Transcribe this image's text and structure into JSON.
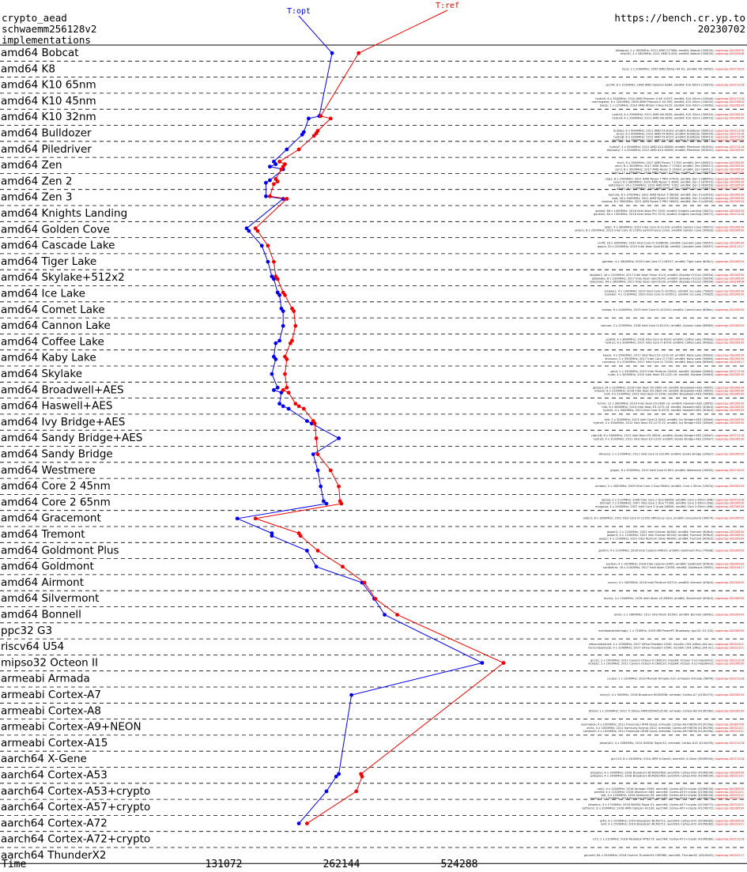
{
  "header": {
    "left_lines": [
      "crypto_aead",
      "schwaemm256128v2",
      "implementations"
    ],
    "right_lines": [
      "https://bench.cr.yp.to",
      "20230702"
    ]
  },
  "chart_data": {
    "type": "line",
    "x_scale": "log2",
    "xlabel": "Time",
    "x_ticks": [
      131072,
      262144,
      524288
    ],
    "series": [
      {
        "name": "T:opt",
        "color": "#0000ee",
        "label_pos": "top"
      },
      {
        "name": "T:ref",
        "color": "#ee0000",
        "label_pos": "top"
      }
    ],
    "rows": [
      {
        "label": "amd64 Bobcat",
        "opt": [
          248000
        ],
        "ref": [
          290000
        ],
        "machines": [
          "bfbobcat; 2 x 1600MHz; 2011 AMD G-T56N; amd64; Bobcat (500f20); supercop-20230530",
          "bfan30; 2 x 1600MHz; 2011 AMD E-450; amd64; Bobcat (500f20); supercop-20220506"
        ]
      },
      {
        "label": "amd64 K8",
        "opt": [],
        "ref": [],
        "machines": [
          "hero; 2 x 2000MHz; 2005 AMD Athlon 64 X2; amd64; K8 (40fb2); supercop-20171020"
        ]
      },
      {
        "label": "amd64 K10 65nm",
        "opt": [],
        "ref": [],
        "machines": [
          "gcc44; 8 x 2100MHz; 2008 AMD Opteron 8384; amd64; K10 65nm (100f23); supercop-20171218"
        ]
      },
      {
        "label": "amd64 K10 45nm",
        "opt": [],
        "ref": [],
        "machines": [
          "hydra5; 6 x 3300MHz; 2010 AMD Phenom II X6 1100T; amd64; K10 45nm (100fa0); supercop-20171218",
          "morningstar; 6 x 3200MHz; 2009 AMD Phenom II X4 955; amd64; K10 45nm (100f42); supercop-20170904",
          "blade; 1 x 1150MHz; 2010 AMD Athlon II Neo K125; amd64; K10 45nm (100f63); supercop-20230530"
        ]
      },
      {
        "label": "amd64 K10 32nm",
        "opt": [
          230000,
          216000
        ],
        "ref": [
          232000,
          246000
        ],
        "machines": [
          "hydra3; 4 x 2900MHz; 2011 AMD A6-3650; amd64; K10 32nm (300f10); supercop-20230530",
          "hydra4; 4 x 2900MHz; 2011 AMD A8-3850; amd64; K10 32nm (300f10); supercop-20230530"
        ]
      },
      {
        "label": "amd64 Bulldozer",
        "opt": [
          210000,
          208000
        ],
        "ref": [
          228000,
          226000,
          223000
        ],
        "machines": [
          "bulldoz; 8 x 4000MHz; 2011 AMD FX-8150; amd64; Bulldozer (600f12); supercop-20171218",
          "sirius; 8 x 4000MHz; 2012 AMD FX-8350; amd64; Bulldozer (600f20); supercop-20171218",
          "hydra8; 8 x 3300MHz; 2012 AMD FX-8120; amd64; Bulldozer (600f12); supercop-20171218",
          "seattle1; 4 x 3600MHz; 2012 AMD FX-4130; amd64; Bulldozer (600f12); supercop-20230530"
        ]
      },
      {
        "label": "amd64 Piledriver",
        "opt": [
          190000
        ],
        "ref": [
          204000
        ],
        "machines": [
          "hydra7; 2 x 3500MHz; 2012 AMD A10-5800K; amd64; Piledriver (610f01); supercop-20171218",
          "bfocasity; 2 x 2000MHz; 2012 AMD A10-5800K; amd64; Piledriver (610f01); supercop-20230530"
        ]
      },
      {
        "label": "amd64 Zen",
        "opt": [
          176000,
          178000,
          172000,
          186000
        ],
        "ref": [
          182000,
          188000,
          186000,
          184000
        ],
        "machines": [
          "zen1; 8 x 3500MHz; 2017 AMD Ryzen 7 1700; amd64; Zen (800f11); supercop-20230530",
          "zen2; 8 x 3500MHz; 2017 AMD Ryzen 7 1700X; amd64; Zen (800f11); supercop-20230530",
          "zen3; 8 x 3500MHz; 2017 AMD Ryzen 5 1500X; amd64; Zen (800f11); supercop-20230530",
          "ryzen; 12 x 3600MHz; 2018 AMD Ryzen 5 2600; amd64; Zen+ (800f82); supercop-20230530"
        ]
      },
      {
        "label": "amd64 Zen 2",
        "opt": [
          172000,
          168000
        ],
        "ref": [
          178000,
          180000,
          176000
        ],
        "machines": [
          "neg1; 8 x 2500MHz; 2021 AMD Ryzen 7 PRO 4750U; amd64; Zen 2 (860f01); supercop-20230530",
          "ryzen; 6 x 3600MHz; 2020 AMD Ryzen 5 3600; amd64; Zen 2 (870f10); supercop-20230530",
          "boltzmann; 16 x 2900MHz; 2019 AMD EPYC 7302; amd64; Zen 2 (830f10); supercop-20230530",
          "gankx; 8 x 2000MHz; 2020 AMD EPYC 7252; amd64; Zen 2 (830f10); supercop-20230530"
        ]
      },
      {
        "label": "amd64 Zen 3",
        "opt": [
          168000,
          186000
        ],
        "ref": [
          172000,
          190000
        ],
        "machines": [
          "bannira; 6 x 3700MHz; 2021 AMD Ryzen 5 5600X; amd64; Zen 3 (a20f10); supercop-20230530",
          "bad; 16 x 3400MHz; 2021 AMD Ryzen 9 5950X; amd64; Zen 3 (a20f10); supercop-20230530",
          "cosmos; 6 x 3900MHz; 2021 AMD Ryzen 5 PRO 5650G; amd64; Zen 3 (a50f00); supercop-20230530"
        ]
      },
      {
        "label": "amd64 Knights Landing",
        "opt": [],
        "ref": [],
        "machines": [
          "gankkl; 68 x 1400MHz; 2016 Intel Xeon Phi 7250; amd64; Knights Landing (50671); supercop-20230530",
          "gankkl2; 64 x 1300MHz; 2016 Intel Xeon Phi 7210; amd64; Knights Landing (50671); supercop-20171218"
        ]
      },
      {
        "label": "amd64 Golden Cove",
        "opt": [
          150000,
          152000
        ],
        "ref": [
          158000,
          160000
        ],
        "machines": [
          "alder; 4 x 3600MHz; 2022 Intel Core i3-12100; amd64; Golden Cove (90672); supercop-20230530",
          "alder2; 8 x 2500MHz; 2022 Intel Core i5-1235U performance cores; amd64; Golden Cove (906a3); supercop-20230530"
        ]
      },
      {
        "label": "amd64 Cascade Lake",
        "opt": [
          164000
        ],
        "ref": [
          170000
        ],
        "machines": [
          "cruffi; 18 x 3000MHz; 2020 Intel Core i9-10980XE; amd64; Cascade Lake (50657); supercop-20230530",
          "gsaca; 20 x 2500MHz; 2019 Intel Xeon Gold 6248; amd64; Cascade Lake (50657); supercop-20211217"
        ]
      },
      {
        "label": "amd64 Tiger Lake",
        "opt": [
          170000
        ],
        "ref": [
          176000
        ],
        "machines": [
          "gamber; 4 x 2800MHz; 2020 Intel Core i7-1165G7; amd64; Tiger Lake (806c1); supercop-20230530"
        ]
      },
      {
        "label": "amd64 Skylake+512x2",
        "opt": [
          174000,
          176000
        ],
        "ref": [
          178000,
          180000
        ],
        "machines": [
          "skylake1; 16 x 2100MHz; 2017 Intel Xeon Silver 4110; amd64; Skylake+512x2 (50654); supercop-20230530",
          "ptskylake; 8 x 2300MHz; 2017 Intel Xeon Gold 6140; amd64; Skylake+512x2 (50654); supercop-20230530",
          "sidechain; 64 x 2600MHz; 2017 Intel Xeon Gold 6130; amd64; Skylake+512x2 (50654); supercop-20210408"
        ]
      },
      {
        "label": "amd64 Ice Lake",
        "opt": [
          180000,
          182000
        ],
        "ref": [
          186000,
          188000
        ],
        "machines": [
          "icelake1; 4 x 1300MHz; 2019 Intel Core i5-1035G1; amd64; Ice Lake (706e5); supercop-20230530",
          "icelaker; 4 x 1100MHz; 2020 Intel Core i3-1005G1; amd64; Ice Lake (706e5); supercop-20230530"
        ]
      },
      {
        "label": "amd64 Comet Lake",
        "opt": [
          184000,
          186000
        ],
        "ref": [
          196000,
          198000
        ],
        "machines": [
          "icetwo; 6 x 2400MHz; 2019 Intel Core i5-10210U; amd64; Comet Lake (806ec); supercop-20230530"
        ]
      },
      {
        "label": "amd64 Cannon Lake",
        "opt": [
          186000
        ],
        "ref": [
          200000
        ],
        "machines": [
          "cannon; 2 x 2200MHz; 2018 Intel Core i3-8121U; amd64; Cannon Lake (60663); supercop-20230530"
        ]
      },
      {
        "label": "amd64 Coffee Lake",
        "opt": [
          182000,
          178000
        ],
        "ref": [
          196000,
          194000
        ],
        "machines": [
          "p1800; 4 x 3600MHz; 2018 Intel Core i3-8100; amd64; Coffee Lake (906eb); supercop-20230530",
          "hydra1; 6 x 3000MHz; 2017 Intel Core i7-8700; amd64; Coffee Lake (906ea); supercop-20230530"
        ]
      },
      {
        "label": "amd64 Kaby Lake",
        "opt": [
          176000,
          178000
        ],
        "ref": [
          188000,
          190000
        ],
        "machines": [
          "kaosa; 4 x 3500MHz; 2017 Intel Xeon E3-1220 v6; amd64; Kaby Lake (906e9); supercop-20230530",
          "shannon; 2 x 3500MHz; 2017 Intel Core i7-7700; amd64; Kaby Lake (906e9); supercop-20230530",
          "cumaeco; 4 x 2500MHz; 2017 Intel Core i3-7100U; amd64; Kaby Lake (806e9); supercop-20210417"
        ]
      },
      {
        "label": "amd64 Skylake",
        "opt": [
          174000
        ],
        "ref": [
          188000
        ],
        "machines": [
          "sand; 2 x 3300MHz; 2015 Intel Pentium G4400; amd64; Skylake (506e3); supercop-20171218",
          "nuke; 4 x 3500MHz; 2015 Intel Xeon E3-1220 v5; amd64; Skylake (506e3); supercop-20230530"
        ]
      },
      {
        "label": "amd64 Broadwell+AES",
        "opt": [
          180000,
          176000,
          184000
        ],
        "ref": [
          190000,
          186000,
          192000
        ],
        "machines": [
          "gbroad; 24 x 2200MHz; 2016 Intel Xeon E5-2650 v4; amd64; Broadwell+AES (406f1); supercop-20230530",
          "broad2; 8 x 2100MHz; 2016 Intel Xeon E5-2620 v4; amd64; Broadwell+AES (406f1); supercop-20230530",
          "bn4; 4 x 2100MHz; 2015 Intel Xeon D-1540; amd64; Broadwell+AES (50663); supercop-20230530"
        ]
      },
      {
        "label": "amd64 Haswell+AES",
        "opt": [
          182000,
          186000,
          192000
        ],
        "ref": [
          200000,
          204000,
          210000
        ],
        "machines": [
          "tumm; 12 x 2800MHz; 2014 Intel Xeon E5-2690 v3; amd64; Haswell+AES (306f2); supercop-20230530",
          "h4e; 8 x 3600MHz; 2014 Intel Xeon E3-1275 v3; amd64; Haswell+AES (306c3); supercop-20230530",
          "hydra2; 4 x 3400MHz; 2013 Intel Core i5-4570; amd64; Haswell+AES (306c3); supercop-20230530"
        ]
      },
      {
        "label": "amd64 Ivy Bridge+AES",
        "opt": [
          214000,
          220000
        ],
        "ref": [
          222000,
          224000
        ],
        "machines": [
          "ekk; 2 x 3000MHz; 2013 Intel Core i3-3240; amd64; Ivy Bridge+AES (306a9); supercop-20230530",
          "hydra9; 4 x 3500MHz; 2012 Intel Xeon E3-1275 V2; amd64; Ivy Bridge+AES (306a9); supercop-20230530"
        ]
      },
      {
        "label": "amd64 Sandy Bridge+AES",
        "opt": [
          258000
        ],
        "ref": [
          226000
        ],
        "machines": [
          "cdon28; 8 x 2600MHz; 2013 Intel Xeon E5-2650L; amd64; Sandy Bridge+AES (206d7); supercop-20171218",
          "hydra5; 4 x 3100MHz; 2011 Intel Xeon E3-1220; amd64; Sandy Bridge+AES (206a7); supercop-20230530"
        ]
      },
      {
        "label": "amd64 Sandy Bridge",
        "opt": [
          222000
        ],
        "ref": [
          228000
        ],
        "machines": [
          "bfnancy; 2 x 2100MHz; 2011 Intel Core i3-2310M; amd64; Sandy Bridge (206a7); supercop-20230530"
        ]
      },
      {
        "label": "amd64 Westmere",
        "opt": [
          228000
        ],
        "ref": [
          246000
        ],
        "machines": [
          "gilgen; 8 x 3200MHz; 2010 Intel Core i5-650; amd64; Westmere (20652); supercop-20171020"
        ]
      },
      {
        "label": "amd64 Core 2 45nm",
        "opt": [
          232000
        ],
        "ref": [
          258000
        ],
        "machines": [
          "wcldaix; 2 x 3000MHz; 2009 Intel Core 2 Duo E8400; amd64; Core 2 45nm (1067a); supercop-20230530"
        ]
      },
      {
        "label": "amd64 Core 2 65nm",
        "opt": [
          236000,
          240000
        ],
        "ref": [
          260000,
          262000
        ],
        "machines": [
          "latoso; 2 x 2137MHz; 2006 Intel Core 2 Duo E6400; amd64; Core 2 65nm (6f6); supercop-20171218",
          "bfsmall; 2 x 2000MHz; 2007 Intel Core 2 Duo T7300; amd64; Core 2 65nm (6fa); supercop-20230530",
          "morgana; 4 x 2400MHz; 2007 Intel Core 2 Quad Q6600; amd64; Core 2 65nm (6fb); supercop-20230530"
        ]
      },
      {
        "label": "amd64 Gracemont",
        "opt": [
          142000
        ],
        "ref": [
          158000
        ],
        "machines": [
          "alder2; 8 x 1800MHz; 2022 Intel Core i5-1235U efficiency core; amd64; Gracemont (90674); supercop-20230530"
        ]
      },
      {
        "label": "amd64 Tremont",
        "opt": [
          174000,
          174000
        ],
        "ref": [
          204000,
          206000
        ],
        "machines": [
          "jasper2; 2 x 1100MHz; 2021 Intel Celeron N4500; amd64; Tremont (906c0); supercop-20230530",
          "jasper3; 4 x 1100MHz; 2021 Intel Celeron N5100; amd64; Tremont (906c0); supercop-20230530",
          "jasper; 4 x 1100MHz; 2021 Intel Pentium Silver N6000; amd64; Tremont (906c0); supercop-20230530"
        ]
      },
      {
        "label": "amd64 Goldmont Plus",
        "opt": [
          214000
        ],
        "ref": [
          228000
        ],
        "machines": [
          "gemini; 4 x 1100MHz; 2018 Intel Celeron N4020; amd64; Goldmont Plus (706a8); supercop-20230530"
        ]
      },
      {
        "label": "amd64 Goldmont",
        "opt": [
          226000
        ],
        "ref": [
          264000
        ],
        "machines": [
          "exciton; 4 x 1500MHz; 2016 Intel Celeron J3455; amd64; Goldmont (506c9); supercop-20230530",
          "saciblehm; 16 x 2100MHz; 2017 Intel Atom C3955; amd64; Goldmont (506f1); supercop-20210417"
        ]
      },
      {
        "label": "amd64 Airmont",
        "opt": [
          296000
        ],
        "ref": [
          300000
        ],
        "machines": [
          "nuccm; 4 x 1600MHz; 2016 Intel Pentium N3710; amd64; Airmont (406c4); supercop-20230530"
        ]
      },
      {
        "label": "amd64 Silvermont",
        "opt": [
          318000
        ],
        "ref": [
          320000
        ],
        "machines": [
          "dunny; 4 x 1344MHz; 2016 Intel Atom x5-Z8300; amd64; Silvermont (406c4); supercop-20230530"
        ]
      },
      {
        "label": "amd64 Bonnell",
        "opt": [
          338000
        ],
        "ref": [
          364000
        ],
        "machines": [
          "atom; 2 x 1660MHz; 2011 Intel Atom D2500; amd64; Bonnell (30661); supercop-20230530"
        ]
      },
      {
        "label": "ppc32 G3",
        "opt": [],
        "ref": [],
        "machines": [
          "macbookwhitemagic; 1 x 720MHz; 2003 IBM PowerPC Broadway; ppc32; G3 (G3); supercop-20230530"
        ]
      },
      {
        "label": "riscv64 U54",
        "opt": [],
        "ref": [],
        "machines": [
          "hifiveunleashed; 4 x 1500MHz; 2017 SiFive Freedom U540; riscv64; U54 (sifive,u54-mc); supercop-20231221",
          "riscvunleashed2; 4 x 1000MHz; 2017 SiFive Freedom U540; riscv64; U54 (sifive,u54-mc); supercop-20231221"
        ]
      },
      {
        "label": "mipso32 Octeon II",
        "opt": [
          600000
        ],
        "ref": [
          680000
        ],
        "machines": [
          "gcc31; 2 x 1000MHz; 2011 Cavium Octeon II CN6120; mips64; Octeon II (cnmips64v2); supercop-20231218",
          "nicked2; 2 x 1000MHz; 2011 Cavium Octeon II CN6120; mips64; Octeon II (cnmips64v2); supercop-20230530"
        ]
      },
      {
        "label": "armeabi Armada",
        "opt": [],
        "ref": [],
        "machines": [
          "cccaty; 1 x 1200MHz; 2010 Marvell Armada 510; armeabi; Armada (56f04); supercop-20171218"
        ]
      },
      {
        "label": "armeabi Cortex-A7",
        "opt": [
          278000
        ],
        "ref": [],
        "machines": [
          "bercy2; 4 x 900MHz; 2018 Broadcom BCM2836; armeabi; Cortex-A7 (410fc075); supercop-20230530"
        ]
      },
      {
        "label": "armeabi Cortex-A8",
        "opt": [],
        "ref": [],
        "machines": [
          "bfzoid; 1 x 1000MHz; 2012 TI Sitara XAM3359AZCZ100; armeabi; Cortex-A8 (413fc082); supercop-20230530"
        ]
      },
      {
        "label": "armeabi Cortex-A9+NEON",
        "opt": [],
        "ref": [],
        "machines": [
          "oxomabox; 4 x 1000MHz; 2011 Freescale i.MX6 Quad; armeabi; Cortex-A9+NEON (412fc09a); supercop-20180709",
          "arnix; 4 x 1000MHz; 2012 Samsung Exynos 4412; armeabi; Cortex-A9+NEON (413fc090); supercop-20231221",
          "cortexa9; 4 x 1000MHz; 2011 Freescale i.MX6 Quad; armeabi; Cortex-A9+NEON (412fc09a); supercop-20231221"
        ]
      },
      {
        "label": "armeabi Cortex-A15",
        "opt": [],
        "ref": [],
        "machines": [
          "jetsontk1; 4 x 2065MHz; 2014 NVIDIA Tegra K1; armeabi; Cortex-A15 (413fc0f3); supercop-20171218"
        ]
      },
      {
        "label": "aarch64 X-Gene",
        "opt": [],
        "ref": [],
        "machines": [
          "gcc115; 8 x 2400MHz; 2014 APM X-Gene1; aarch64; X-Gene (500f0000); supercop-20171218"
        ]
      },
      {
        "label": "aarch64 Cortex-A53",
        "opt": [
          258000,
          254000
        ],
        "ref": [
          294000,
          296000
        ],
        "machines": [
          "pi3aplus; 4 x 1400MHz; 2018 Broadcom BCM2837B0; aarch64; Cortex-A53 (410fd034); supercop-20230530",
          "pi3bplus; 4 x 1400MHz; 2018 Broadcom BCM2837B0; aarch64; Cortex-A53 (410fd034); supercop-20231221"
        ]
      },
      {
        "label": "aarch64 Cortex-A53+crypto",
        "opt": [
          240000
        ],
        "ref": [
          286000
        ],
        "machines": [
          "sak1; 4 x 1200MHz; 2016 Amlogic S905; aarch64; Cortex-A53+crypto (410fd034); supercop-20230530",
          "pine64; 4 x 1152MHz; 2016 Allwinner A64; aarch64; Cortex-A53+crypto (410fd034); supercop-20231221",
          "bpi; 4 x 1200MHz; 2016 Allwinner H5; aarch64; Cortex-A53+crypto (410fd034); supercop-20231221",
          "rockpi; 4 x 1200MHz; 2018 Rockchip RK3328; aarch64; Cortex-A53+crypto (410fd034); supercop-20231221"
        ]
      },
      {
        "label": "aarch64 Cortex-A57+crypto",
        "opt": [],
        "ref": [],
        "machines": [
          "jetsonnx; 4 x 1734MHz; 2016 NVIDIA Tegra X1; aarch64; Cortex-A57+crypto (411fd071); supercop-20231221",
          "softiron1; 8 x 2000MHz; 2016 AMD Opteron A1100; aarch64; Cortex-A57+crypto (411fd072); supercop-20230530"
        ]
      },
      {
        "label": "aarch64 Cortex-A72",
        "opt": [
          204000
        ],
        "ref": [
          214000
        ],
        "machines": [
          "pi4b; 4 x 1500MHz; 2019 Broadcom BCM2711; aarch64; Cortex-A72 (410fd083); supercop-20230530",
          "rpi4; 4 x 1500MHz; 2019 Broadcom BCM2711; aarch64; Cortex-A72 (410fd083); supercop-20231221"
        ]
      },
      {
        "label": "aarch64 Cortex-A72+crypto",
        "opt": [],
        "ref": [],
        "machines": [
          "a72; 2 x 2100MHz; 2018 Mediatek MT8173; aarch64; Cortex-A72+crypto (410fd080); supercop-20171218"
        ]
      },
      {
        "label": "aarch64 ThunderX2",
        "opt": [],
        "ref": [],
        "machines": [
          "gnuorid; 64 x 2500MHz; 2018 Cavium ThunderX2 CN9980; aarch64; ThunderX2 (431f0af1); supercop-20231217"
        ]
      }
    ]
  }
}
